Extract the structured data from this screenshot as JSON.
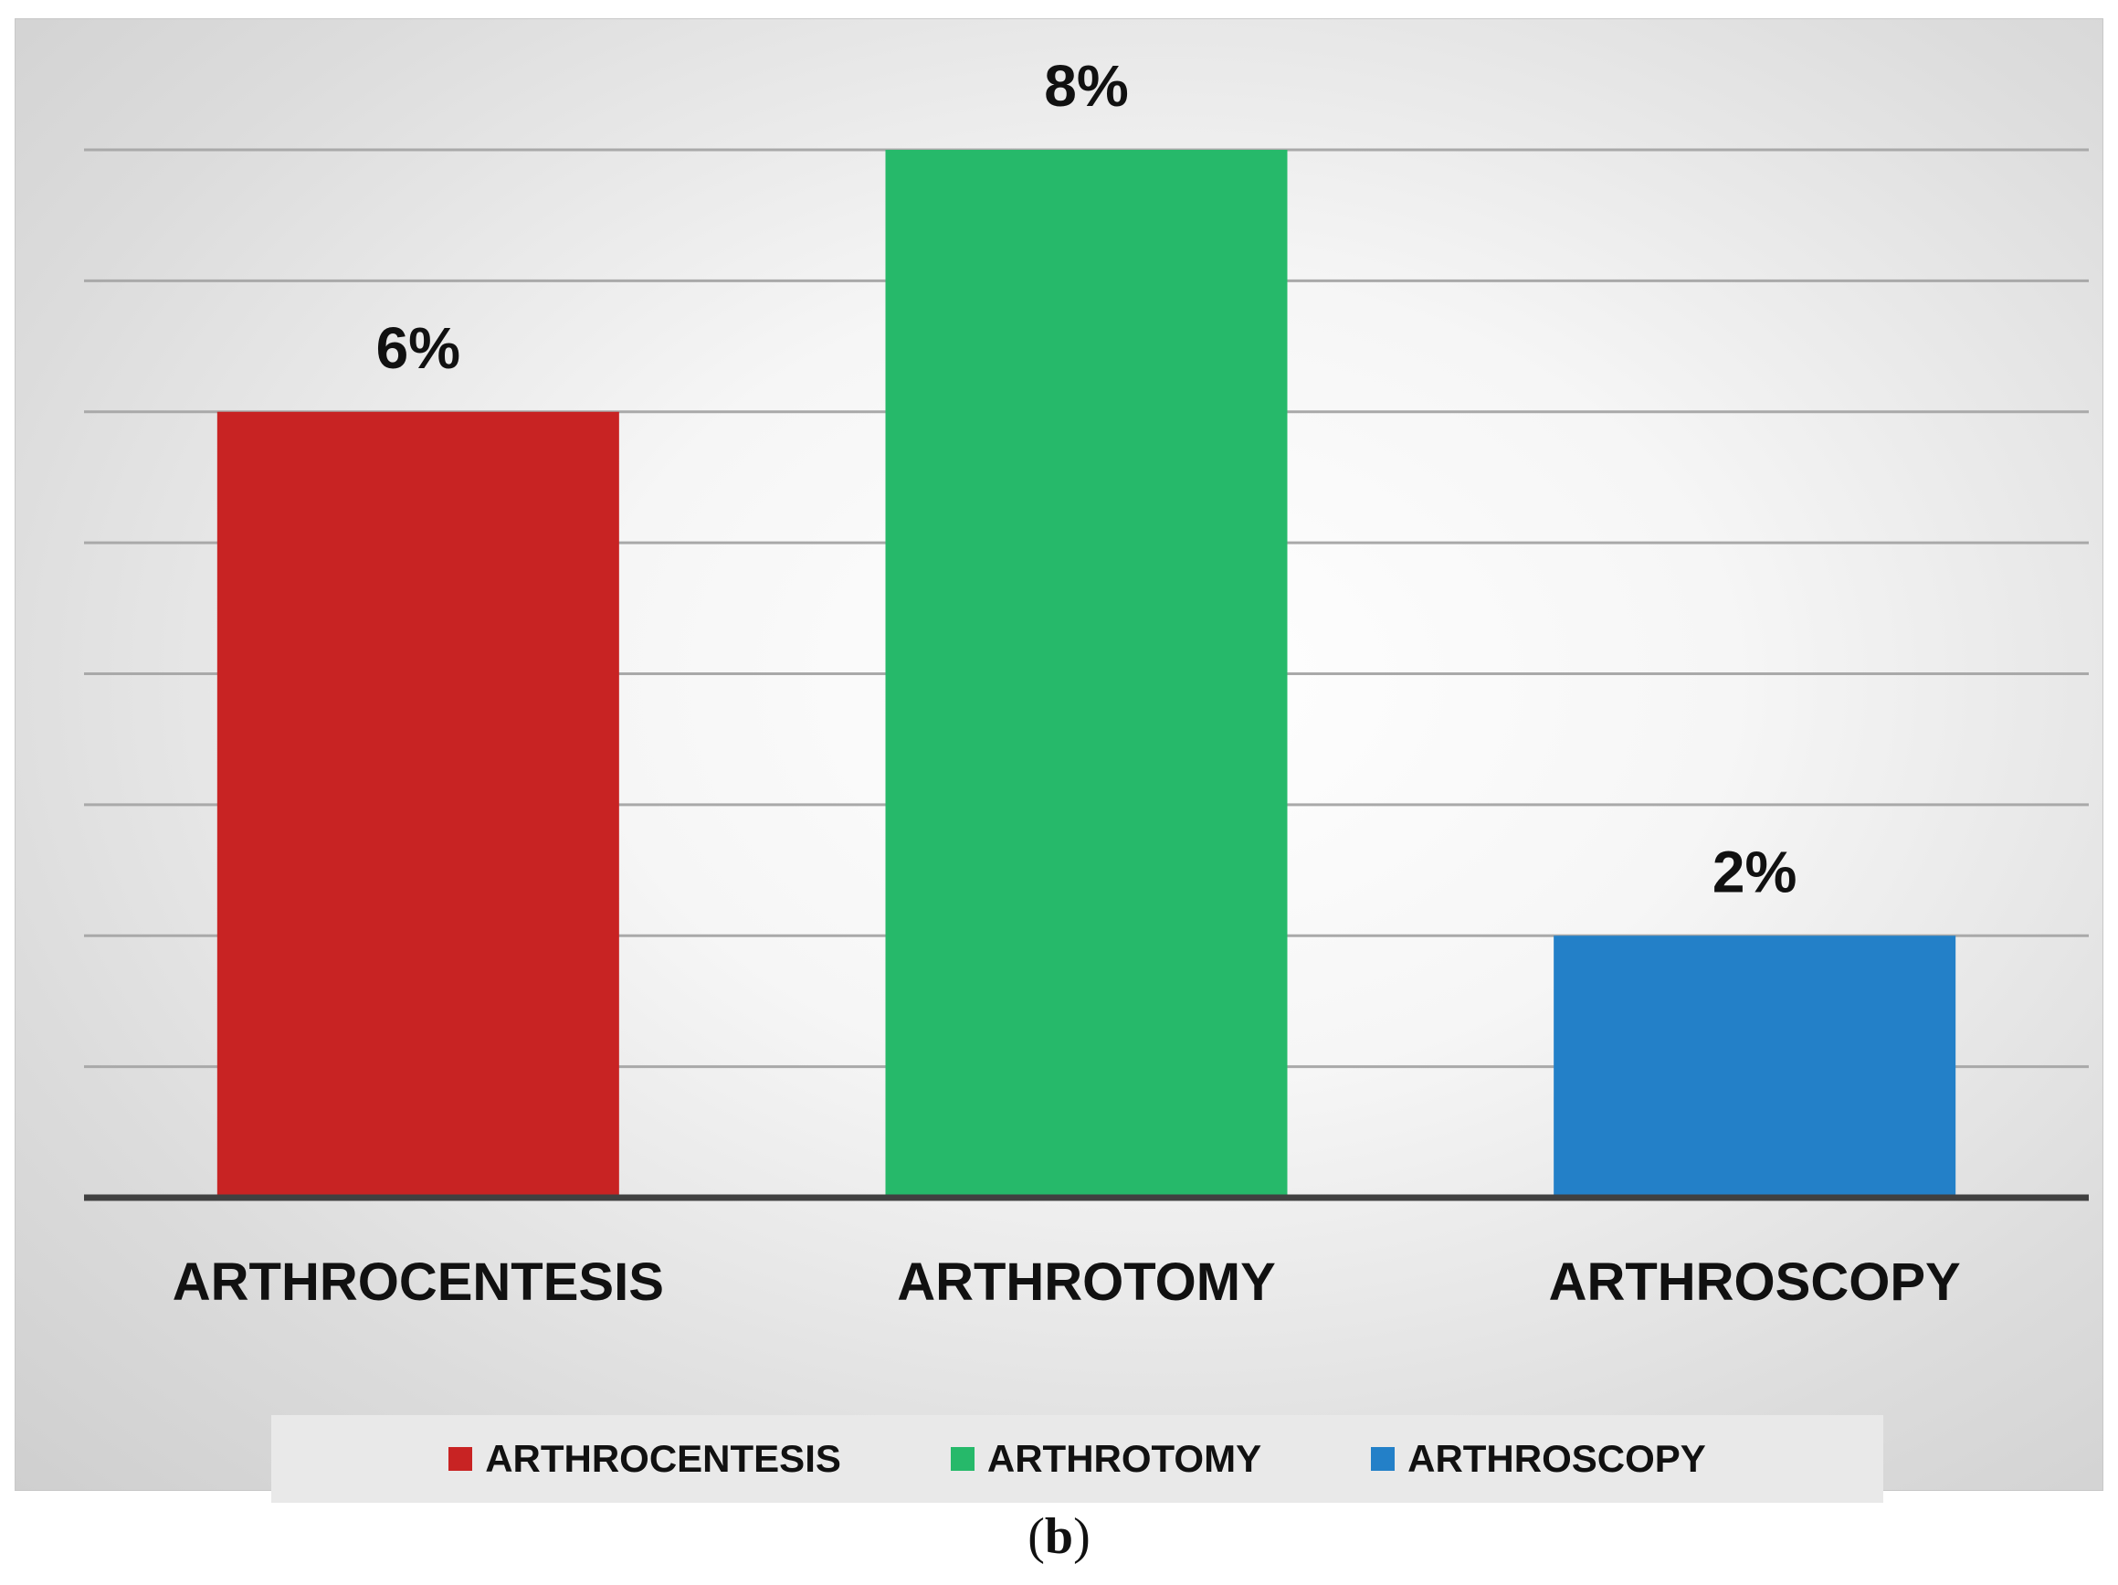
{
  "chart_data": {
    "type": "bar",
    "categories": [
      "ARTHROCENTESIS",
      "ARTHROTOMY",
      "ARTHROSCOPY"
    ],
    "values": [
      6,
      8,
      2
    ],
    "data_labels": [
      "6%",
      "8%",
      "2%"
    ],
    "colors": [
      "#c82323",
      "#26b96a",
      "#2380c8"
    ],
    "ylim": [
      0,
      8
    ],
    "grid": true,
    "legend": {
      "placement": "bottom",
      "entries": [
        "ARTHROCENTESIS",
        "ARTHROTOMY",
        "ARTHROSCOPY"
      ]
    }
  },
  "caption": {
    "open": "(",
    "letter": "b",
    "close": ")"
  }
}
